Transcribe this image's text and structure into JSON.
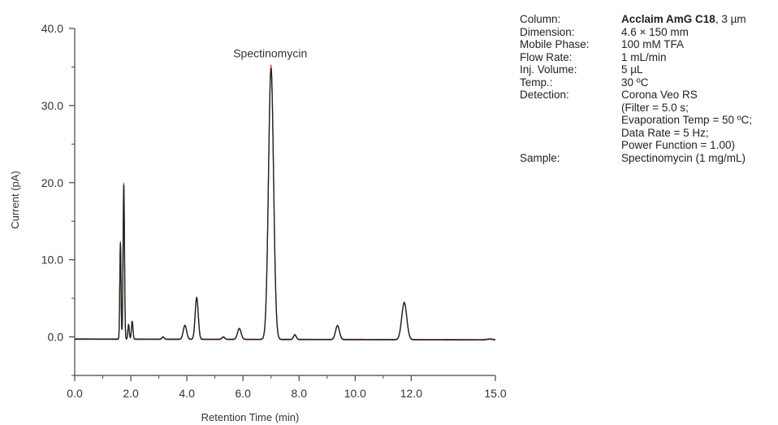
{
  "chart_data": {
    "type": "line",
    "xlabel": "Retention Time (min)",
    "ylabel": "Current (pA)",
    "xlim": [
      0,
      15
    ],
    "ylim": [
      -5,
      40
    ],
    "x_ticks": [
      "0.0",
      "2.0",
      "4.0",
      "6.0",
      "8.0",
      "10.0",
      "12.0",
      "15.0"
    ],
    "y_ticks": [
      "0.0",
      "10.0",
      "20.0",
      "30.0",
      "40.0"
    ],
    "grid": false,
    "annotations": [
      {
        "text": "Spectinomycin",
        "x": 7.0,
        "y": 35.0
      }
    ],
    "baseline": -0.3,
    "baseline_drift": -0.1,
    "peaks": [
      {
        "rt": 1.63,
        "height": 12.5,
        "width": 0.022
      },
      {
        "rt": 1.75,
        "height": 20.0,
        "width": 0.025
      },
      {
        "rt": 1.92,
        "height": 1.9,
        "width": 0.025
      },
      {
        "rt": 2.05,
        "height": 2.3,
        "width": 0.028
      },
      {
        "rt": 3.15,
        "height": 0.3,
        "width": 0.04
      },
      {
        "rt": 3.93,
        "height": 1.8,
        "width": 0.06
      },
      {
        "rt": 4.35,
        "height": 5.4,
        "width": 0.055
      },
      {
        "rt": 5.3,
        "height": 0.3,
        "width": 0.05
      },
      {
        "rt": 5.87,
        "height": 1.4,
        "width": 0.065
      },
      {
        "rt": 7.0,
        "height": 35.2,
        "width": 0.09
      },
      {
        "rt": 7.85,
        "height": 0.6,
        "width": 0.05
      },
      {
        "rt": 9.37,
        "height": 1.8,
        "width": 0.07
      },
      {
        "rt": 11.75,
        "height": 4.8,
        "width": 0.09
      },
      {
        "rt": 14.8,
        "height": 0.1,
        "width": 0.1
      }
    ],
    "series_colors": [
      "#e0305a",
      "#3a3aa8",
      "#c8c800",
      "#222222"
    ]
  },
  "conditions": [
    {
      "label": "Column:",
      "lines": [
        {
          "bold": "Acclaim AmG C18",
          "text": ", 3 µm"
        }
      ]
    },
    {
      "label": "Dimension:",
      "lines": [
        {
          "text": "4.6 × 150 mm"
        }
      ]
    },
    {
      "label": "Mobile Phase:",
      "lines": [
        {
          "text": "100 mM TFA"
        }
      ]
    },
    {
      "label": "Flow Rate:",
      "lines": [
        {
          "text": "1 mL/min"
        }
      ]
    },
    {
      "label": "Inj. Volume:",
      "lines": [
        {
          "text": "5 µL"
        }
      ]
    },
    {
      "label": "Temp.:",
      "lines": [
        {
          "text": "30 ºC"
        }
      ]
    },
    {
      "label": "Detection:",
      "lines": [
        {
          "text": "Corona Veo RS"
        },
        {
          "text": "(Filter = 5.0 s;"
        },
        {
          "text": "Evaporation Temp = 50 ºC;"
        },
        {
          "text": "Data Rate = 5 Hz;"
        },
        {
          "text": "Power Function = 1.00)"
        }
      ]
    },
    {
      "label": "Sample:",
      "lines": [
        {
          "text": "Spectinomycin (1 mg/mL)"
        }
      ]
    }
  ]
}
